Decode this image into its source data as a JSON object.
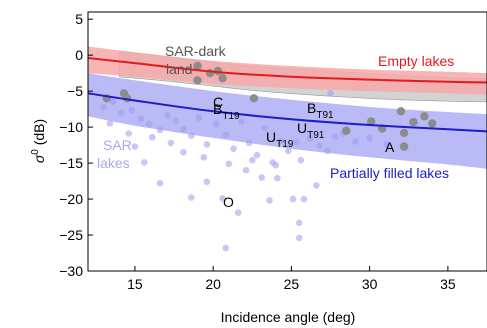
{
  "chart_data": {
    "type": "scatter",
    "xlabel": "Incidence angle (deg)",
    "ylabel_main": "σ",
    "ylabel_sup": "0",
    "ylabel_unit": " (dB)",
    "xlim": [
      12,
      37.5
    ],
    "ylim": [
      -30,
      6
    ],
    "xticks": [
      15,
      20,
      25,
      30,
      35
    ],
    "yticks": [
      5,
      0,
      -5,
      -10,
      -15,
      -20,
      -25,
      -30
    ],
    "grid": false,
    "colors": {
      "empty_band": "#f7a8a8",
      "empty_line": "#e41a1c",
      "partial_band": "#b3b3f5",
      "partial_line": "#1c1cc8",
      "dark_land": "#c8c8c8",
      "gray_point": "#8c8c8c",
      "sar_point": "#9a9af0"
    },
    "bands": {
      "empty_lakes": {
        "x": [
          12,
          15,
          20,
          25,
          30,
          35,
          37.5
        ],
        "upper": [
          1.2,
          0.4,
          -0.8,
          -1.5,
          -2.0,
          -2.3,
          -2.5
        ],
        "lower": [
          -2.5,
          -3.0,
          -4.0,
          -4.6,
          -5.0,
          -5.3,
          -5.5
        ]
      },
      "partially_filled_lakes": {
        "x": [
          12,
          15,
          20,
          25,
          30,
          35,
          37.5
        ],
        "upper": [
          -2.5,
          -3.5,
          -5.0,
          -6.2,
          -7.2,
          -7.9,
          -8.2
        ],
        "lower": [
          -8.5,
          -9.8,
          -11.5,
          -13.0,
          -14.2,
          -15.2,
          -15.8
        ]
      },
      "sar_dark_land": {
        "x": [
          14,
          17,
          20,
          23,
          26,
          29,
          32,
          35,
          37.5
        ],
        "upper": [
          0.6,
          -0.2,
          -1.0,
          -1.6,
          -2.0,
          -2.4,
          -2.8,
          -3.1,
          -3.3
        ],
        "lower": [
          -3.0,
          -3.6,
          -4.3,
          -5.0,
          -5.5,
          -5.9,
          -6.2,
          -6.4,
          -6.5
        ]
      }
    },
    "series": [
      {
        "name": "Empty lakes",
        "x": [
          12,
          15,
          20,
          25,
          30,
          35,
          37.5
        ],
        "y": [
          -0.4,
          -1.1,
          -2.3,
          -3.0,
          -3.4,
          -3.7,
          -3.8
        ]
      },
      {
        "name": "Partially filled lakes",
        "x": [
          12,
          15,
          20,
          25,
          30,
          35,
          37.5
        ],
        "y": [
          -5.3,
          -6.3,
          -7.8,
          -8.9,
          -9.7,
          -10.3,
          -10.6
        ]
      }
    ],
    "gray_points": [
      [
        13.2,
        -6.0
      ],
      [
        14.3,
        -5.3
      ],
      [
        14.5,
        -6.0
      ],
      [
        19.0,
        -1.5
      ],
      [
        19.0,
        -3.5
      ],
      [
        19.8,
        -2.5
      ],
      [
        20.3,
        -2.2
      ],
      [
        20.6,
        -3.2
      ],
      [
        22.6,
        -6.0
      ],
      [
        28.5,
        -10.5
      ],
      [
        30.1,
        -9.2
      ],
      [
        30.8,
        -10.2
      ],
      [
        32.0,
        -7.8
      ],
      [
        32.2,
        -10.8
      ],
      [
        32.8,
        -9.3
      ],
      [
        33.5,
        -8.5
      ],
      [
        32.2,
        -12.7
      ],
      [
        34.0,
        -9.5
      ]
    ],
    "sar_points": [
      [
        13.0,
        -7.2
      ],
      [
        13.6,
        -6.5
      ],
      [
        14.1,
        -8.0
      ],
      [
        14.8,
        -7.6
      ],
      [
        15.4,
        -8.8
      ],
      [
        15.9,
        -9.6
      ],
      [
        16.6,
        -10.4
      ],
      [
        17.1,
        -8.4
      ],
      [
        17.6,
        -9.1
      ],
      [
        18.1,
        -10.3
      ],
      [
        18.6,
        -11.2
      ],
      [
        19.1,
        -8.7
      ],
      [
        19.6,
        -12.4
      ],
      [
        20.2,
        -9.6
      ],
      [
        20.8,
        -11.1
      ],
      [
        21.3,
        -13.0
      ],
      [
        21.8,
        -9.2
      ],
      [
        22.3,
        -12.2
      ],
      [
        22.8,
        -13.9
      ],
      [
        23.3,
        -10.1
      ],
      [
        23.8,
        -14.9
      ],
      [
        24.3,
        -11.9
      ],
      [
        24.8,
        -13.3
      ],
      [
        25.3,
        -12.1
      ],
      [
        25.6,
        -14.6
      ],
      [
        26.2,
        -11.6
      ],
      [
        26.8,
        -12.6
      ],
      [
        27.3,
        -13.3
      ],
      [
        27.8,
        -11.3
      ],
      [
        28.3,
        -10.9
      ],
      [
        29.1,
        -12.0
      ],
      [
        30.0,
        -11.5
      ],
      [
        31.1,
        -12.4
      ],
      [
        15.0,
        -12.7
      ],
      [
        15.6,
        -14.9
      ],
      [
        16.6,
        -17.8
      ],
      [
        18.6,
        -19.8
      ],
      [
        19.6,
        -17.6
      ],
      [
        20.6,
        -19.9
      ],
      [
        20.8,
        -26.8
      ],
      [
        21.6,
        -21.9
      ],
      [
        23.1,
        -17.0
      ],
      [
        23.6,
        -20.2
      ],
      [
        24.1,
        -17.1
      ],
      [
        25.1,
        -20.0
      ],
      [
        25.5,
        -23.3
      ],
      [
        25.8,
        -20.0
      ],
      [
        25.5,
        -25.4
      ],
      [
        26.6,
        -18.1
      ],
      [
        22.1,
        -16.0
      ],
      [
        16.1,
        -11.4
      ],
      [
        17.3,
        -12.2
      ],
      [
        18.1,
        -13.5
      ],
      [
        19.4,
        -14.2
      ],
      [
        21.0,
        -15.1
      ],
      [
        22.5,
        -14.6
      ],
      [
        24.0,
        -15.3
      ],
      [
        13.4,
        -9.5
      ],
      [
        14.6,
        -10.9
      ],
      [
        27.5,
        -5.3
      ]
    ],
    "annotations": {
      "sar_dark_land_l1": "SAR-dark",
      "sar_dark_land_l2": "land",
      "empty_lakes": "Empty lakes",
      "partially_filled_lakes": "Partially filled lakes",
      "sar_lakes_l1": "SAR",
      "sar_lakes_l2": "lakes",
      "C": "C",
      "B": "B",
      "B_sub": "T19",
      "B2": "B",
      "B2_sub": "T91",
      "U": "U",
      "U_sub": "T19",
      "U2": "U",
      "U2_sub": "T91",
      "A": "A",
      "O": "O"
    }
  }
}
